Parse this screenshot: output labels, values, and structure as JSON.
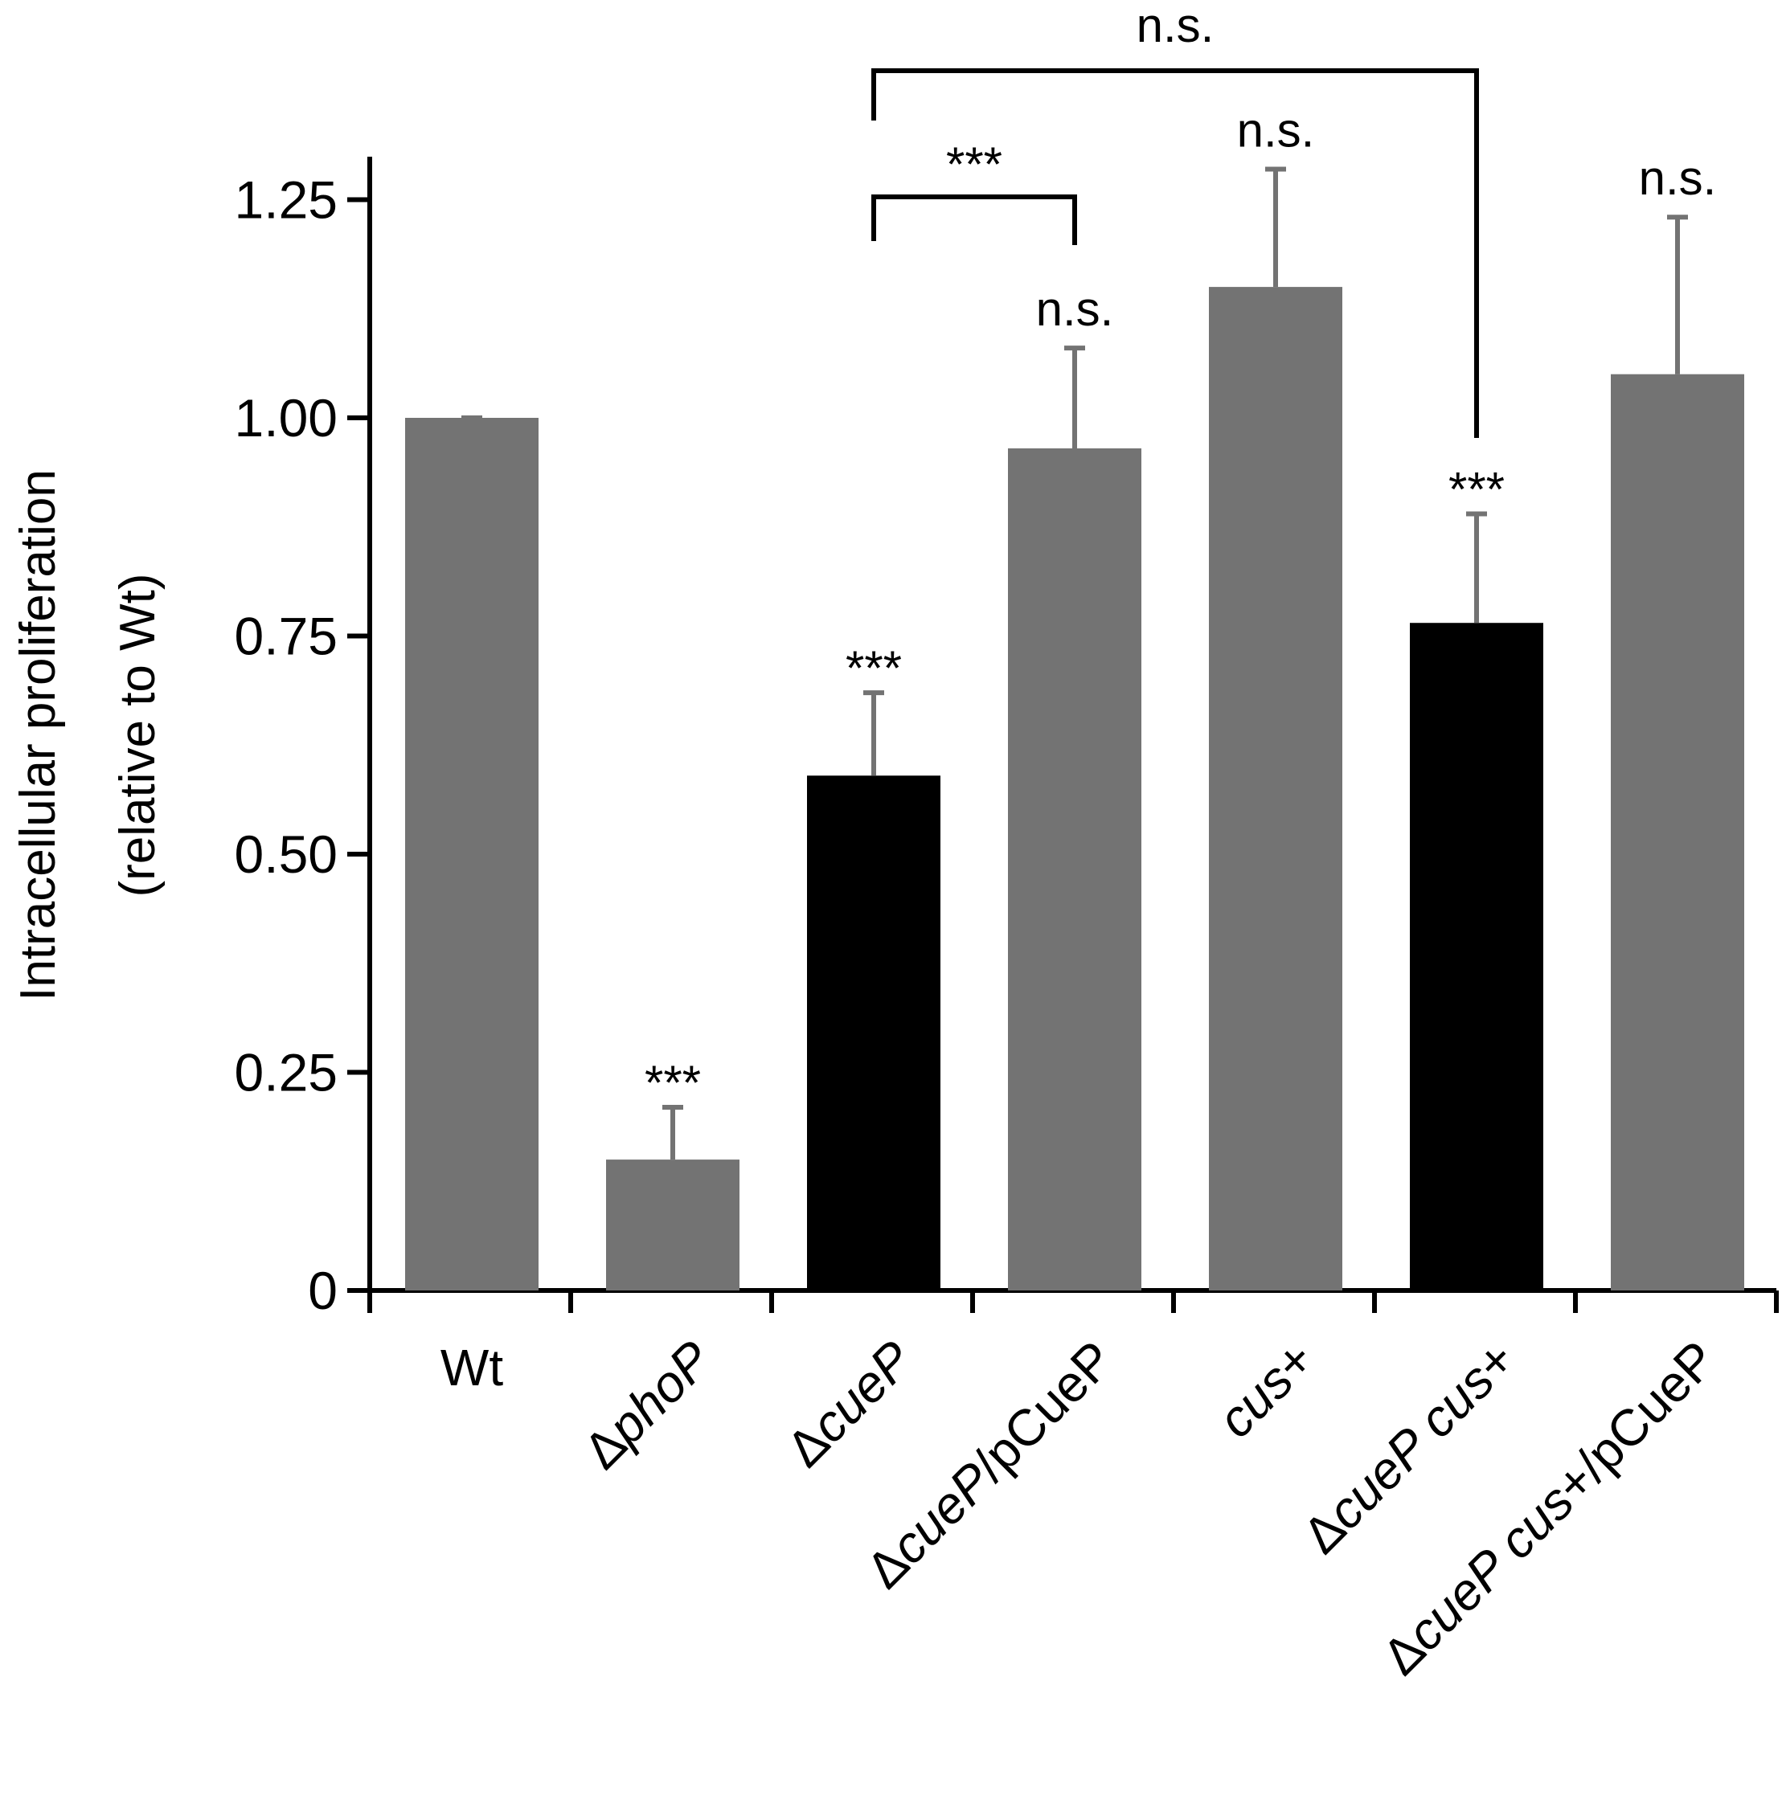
{
  "chart_data": {
    "type": "bar",
    "title": "",
    "xlabel": "",
    "ylabel": "Intracellular proliferation",
    "ylabel_sub": "(relative to Wt)",
    "ylim": [
      0,
      1.3
    ],
    "yticks": [
      0,
      0.25,
      0.5,
      0.75,
      1.0,
      1.25
    ],
    "ytick_labels": [
      "0",
      "0.25",
      "0.50",
      "0.75",
      "1.00",
      "1.25"
    ],
    "grid": false,
    "legend": "none",
    "categories": [
      {
        "label": "Wt",
        "parts": [
          {
            "text": "Wt",
            "italic": false
          }
        ]
      },
      {
        "label": "ΔphoP",
        "parts": [
          {
            "text": "Δ",
            "italic": false
          },
          {
            "text": "phoP",
            "italic": true
          }
        ]
      },
      {
        "label": "ΔcueP",
        "parts": [
          {
            "text": "Δ",
            "italic": false
          },
          {
            "text": "cueP",
            "italic": true
          }
        ]
      },
      {
        "label": "ΔcueP/pCueP",
        "parts": [
          {
            "text": "Δ",
            "italic": false
          },
          {
            "text": "cueP",
            "italic": true
          },
          {
            "text": "/pCueP",
            "italic": false
          }
        ]
      },
      {
        "label": "cus+",
        "parts": [
          {
            "text": "cus",
            "italic": true
          },
          {
            "text": "+",
            "italic": false
          }
        ]
      },
      {
        "label": "ΔcueP cus+",
        "parts": [
          {
            "text": "Δ",
            "italic": false
          },
          {
            "text": "cueP cus",
            "italic": true
          },
          {
            "text": "+",
            "italic": false
          }
        ]
      },
      {
        "label": "ΔcueP cus+/pCueP",
        "parts": [
          {
            "text": "Δ",
            "italic": false
          },
          {
            "text": "cueP cus",
            "italic": true
          },
          {
            "text": "+/pCueP",
            "italic": false
          }
        ]
      }
    ],
    "values": [
      1.0,
      0.15,
      0.59,
      0.965,
      1.15,
      0.765,
      1.05
    ],
    "errors": [
      0.0,
      0.06,
      0.095,
      0.115,
      0.135,
      0.125,
      0.18
    ],
    "colors": [
      "#737373",
      "#737373",
      "#000000",
      "#737373",
      "#737373",
      "#000000",
      "#737373"
    ],
    "error_color": "#737373",
    "significance": [
      "",
      "***",
      "***",
      "n.s.",
      "n.s.",
      "***",
      "n.s."
    ],
    "brackets": [
      {
        "from": 2,
        "to": 3,
        "label": "***"
      },
      {
        "from": 2,
        "to": 5,
        "label": "n.s."
      }
    ]
  }
}
